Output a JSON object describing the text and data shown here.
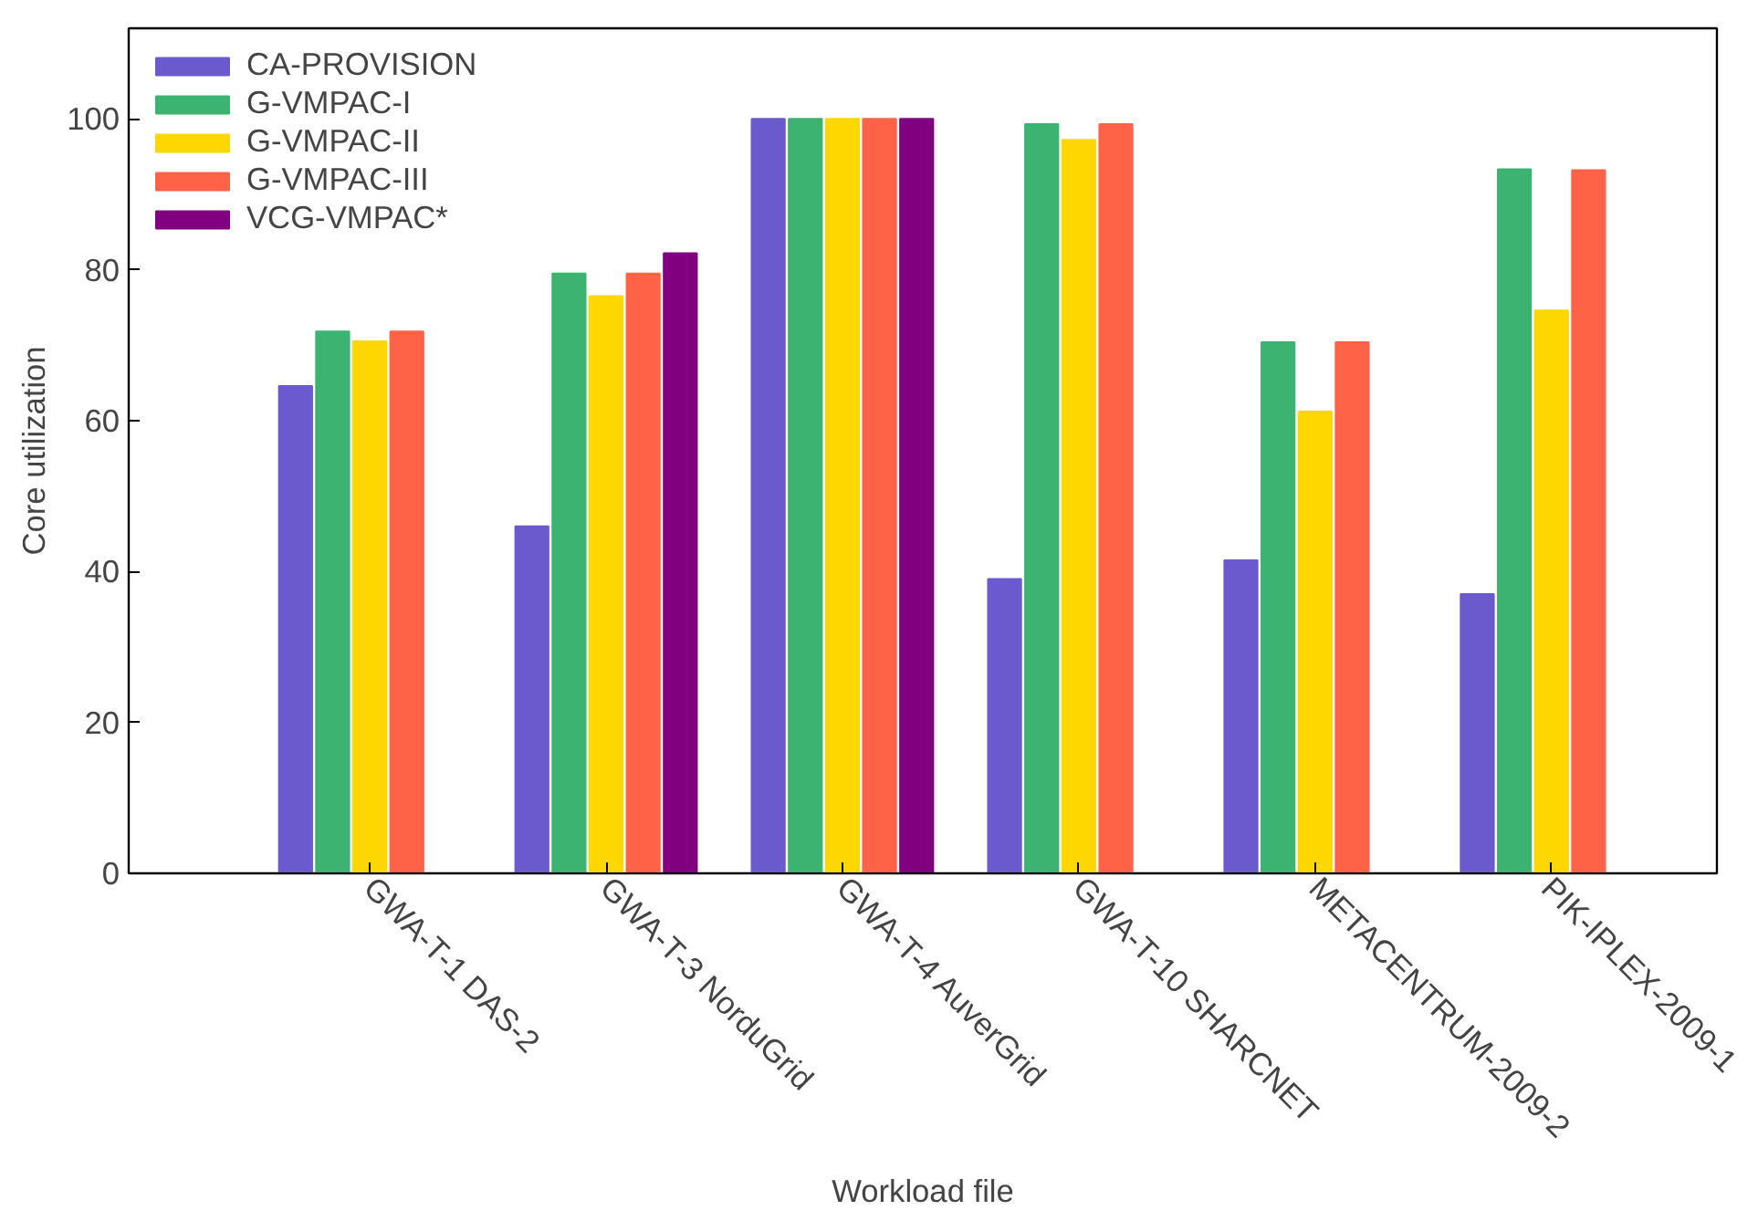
{
  "chart_data": {
    "type": "bar",
    "xlabel": "Workload file",
    "ylabel": "Core utilization",
    "categories": [
      "GWA-T-1 DAS-2",
      "GWA-T-3 NorduGrid",
      "GWA-T-4 AuverGrid",
      "GWA-T-10 SHARCNET",
      "METACENTRUM-2009-2",
      "PIK-IPLEX-2009-1"
    ],
    "series": [
      {
        "name": "CA-PROVISION",
        "color": "#6a5acd",
        "values": [
          64.6,
          46,
          100,
          39,
          41.5,
          37
        ]
      },
      {
        "name": "G-VMPAC-I",
        "color": "#3cb371",
        "values": [
          71.8,
          79.5,
          100,
          99.3,
          70.4,
          93.3
        ]
      },
      {
        "name": "G-VMPAC-II",
        "color": "#ffd700",
        "values": [
          70.5,
          76.5,
          100,
          97.2,
          61.2,
          74.6
        ]
      },
      {
        "name": "G-VMPAC-III",
        "color": "#ff6347",
        "values": [
          71.8,
          79.5,
          100,
          99.3,
          70.4,
          93.2
        ]
      },
      {
        "name": "VCG-VMPAC*",
        "color": "#800080",
        "values": [
          null,
          82.2,
          100,
          null,
          null,
          null
        ]
      }
    ],
    "ylim": [
      0,
      112
    ],
    "yticks": [
      0,
      20,
      40,
      60,
      80,
      100
    ],
    "grid": false,
    "legend": "top left"
  }
}
